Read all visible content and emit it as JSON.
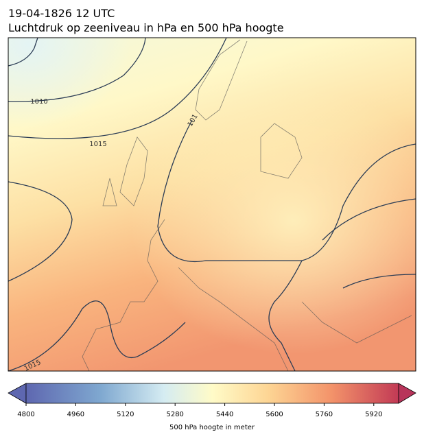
{
  "header": {
    "line1": "19-04-1826 12 UTC",
    "line2": "Luchtdruk op zeeniveau in hPa en 500 hPa hoogte"
  },
  "isobar_labels": [
    "1010",
    "1015",
    "101",
    "1015"
  ],
  "colorbar": {
    "lim": [
      4800,
      6000
    ],
    "ticks": [
      4800,
      4960,
      5120,
      5280,
      5440,
      5600,
      5760,
      5920
    ],
    "label": "500 hPa hoogte in meter"
  }
}
